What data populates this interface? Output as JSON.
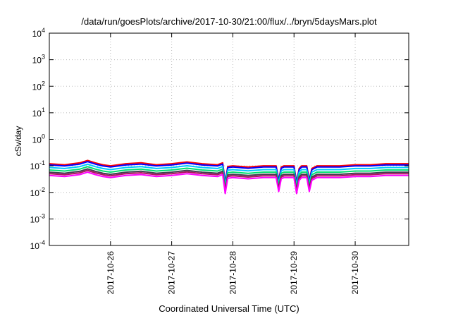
{
  "chart_data": {
    "type": "line",
    "title": "/data/run/goesPlots/archive/2017-10-30/21:00/flux/../bryn/5daysMars.plot",
    "xlabel": "Coordinated Universal Time (UTC)",
    "ylabel": "cSv/day",
    "y_scale": "log",
    "ylim": [
      0.0001,
      10000
    ],
    "y_ticks": [
      {
        "value": 0.0001,
        "base": "10",
        "exp": "-4"
      },
      {
        "value": 0.001,
        "base": "10",
        "exp": "-3"
      },
      {
        "value": 0.01,
        "base": "10",
        "exp": "-2"
      },
      {
        "value": 0.1,
        "base": "10",
        "exp": "-1"
      },
      {
        "value": 1,
        "base": "10",
        "exp": "0"
      },
      {
        "value": 10,
        "base": "10",
        "exp": "1"
      },
      {
        "value": 100,
        "base": "10",
        "exp": "2"
      },
      {
        "value": 1000,
        "base": "10",
        "exp": "3"
      },
      {
        "value": 10000,
        "base": "10",
        "exp": "4"
      }
    ],
    "xlim": [
      "2017-10-25 00:00",
      "2017-10-30 21:00"
    ],
    "x_ticks": [
      "2017-10-26",
      "2017-10-27",
      "2017-10-28",
      "2017-10-29",
      "2017-10-30"
    ],
    "grid": true,
    "legend": "none",
    "series_note": "Seven unlabeled series; values describe the top (red) series, others scaled below it.",
    "x": [
      "2017-10-25 00:00",
      "2017-10-25 06:00",
      "2017-10-25 12:00",
      "2017-10-25 15:00",
      "2017-10-25 18:00",
      "2017-10-25 21:00",
      "2017-10-26 00:00",
      "2017-10-26 06:00",
      "2017-10-26 12:00",
      "2017-10-26 18:00",
      "2017-10-27 00:00",
      "2017-10-27 06:00",
      "2017-10-27 12:00",
      "2017-10-27 18:00",
      "2017-10-27 20:00",
      "2017-10-27 21:00",
      "2017-10-27 22:00",
      "2017-10-28 00:00",
      "2017-10-28 06:00",
      "2017-10-28 12:00",
      "2017-10-28 17:00",
      "2017-10-28 18:00",
      "2017-10-28 19:00",
      "2017-10-28 20:00",
      "2017-10-29 00:00",
      "2017-10-29 01:00",
      "2017-10-29 02:00",
      "2017-10-29 03:00",
      "2017-10-29 05:00",
      "2017-10-29 06:00",
      "2017-10-29 07:00",
      "2017-10-29 09:00",
      "2017-10-29 12:00",
      "2017-10-29 18:00",
      "2017-10-30 00:00",
      "2017-10-30 06:00",
      "2017-10-30 12:00",
      "2017-10-30 18:00",
      "2017-10-30 21:00"
    ],
    "series": [
      {
        "color": "#ff0000",
        "values": [
          0.12,
          0.11,
          0.13,
          0.16,
          0.13,
          0.11,
          0.1,
          0.12,
          0.13,
          0.11,
          0.12,
          0.14,
          0.12,
          0.11,
          0.13,
          0.025,
          0.095,
          0.1,
          0.09,
          0.1,
          0.1,
          0.03,
          0.09,
          0.1,
          0.1,
          0.025,
          0.08,
          0.1,
          0.1,
          0.03,
          0.08,
          0.1,
          0.1,
          0.1,
          0.11,
          0.11,
          0.12,
          0.12,
          0.12
        ]
      },
      {
        "color": "#0000ff",
        "scale": 0.9
      },
      {
        "color": "#00c8ff",
        "scale": 0.72
      },
      {
        "color": "#00e070",
        "scale": 0.58
      },
      {
        "color": "#404050",
        "scale": 0.48
      },
      {
        "color": "#b01060",
        "scale": 0.42
      },
      {
        "color": "#ff00ff",
        "scale": 0.36
      }
    ]
  }
}
